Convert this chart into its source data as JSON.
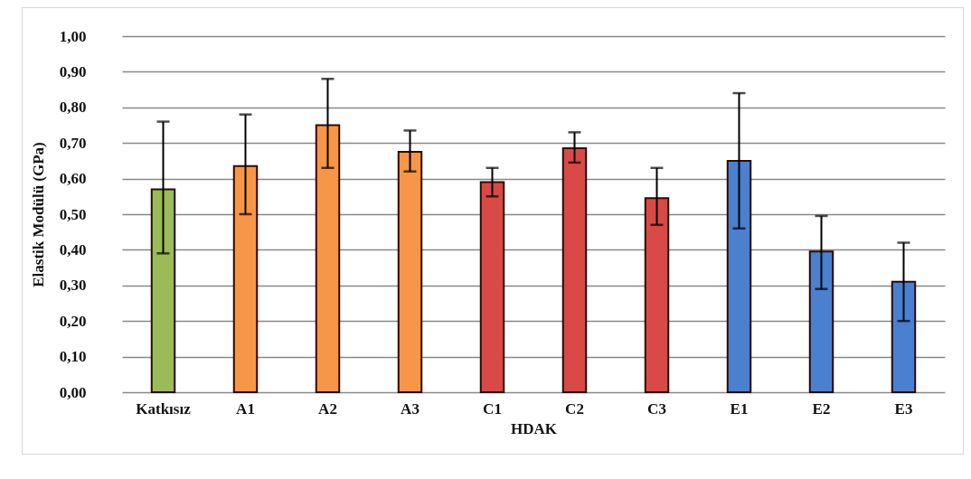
{
  "chart_data": {
    "type": "bar",
    "xlabel": "HDAK",
    "ylabel": "Elastik Modülü (GPa)",
    "categories": [
      "Katkısız",
      "A1",
      "A2",
      "A3",
      "C1",
      "C2",
      "C3",
      "E1",
      "E2",
      "E3"
    ],
    "values": [
      0.57,
      0.635,
      0.75,
      0.675,
      0.59,
      0.685,
      0.545,
      0.65,
      0.395,
      0.31
    ],
    "colors": [
      "#9bbb59",
      "#f79646",
      "#f79646",
      "#f79646",
      "#d94a46",
      "#d94a46",
      "#d94a46",
      "#4a80cf",
      "#4a80cf",
      "#4a80cf"
    ],
    "errors": [
      [
        0.39,
        0.76
      ],
      [
        0.5,
        0.78
      ],
      [
        0.63,
        0.88
      ],
      [
        0.62,
        0.735
      ],
      [
        0.55,
        0.63
      ],
      [
        0.645,
        0.73
      ],
      [
        0.47,
        0.63
      ],
      [
        0.46,
        0.84
      ],
      [
        0.29,
        0.495
      ],
      [
        0.2,
        0.42
      ]
    ],
    "ylim": [
      0,
      1
    ],
    "yticks": [
      {
        "value": 0,
        "label": "0,00"
      },
      {
        "value": 0.1,
        "label": "0,10"
      },
      {
        "value": 0.2,
        "label": "0,20"
      },
      {
        "value": 0.3,
        "label": "0,30"
      },
      {
        "value": 0.4,
        "label": "0,40"
      },
      {
        "value": 0.5,
        "label": "0,50"
      },
      {
        "value": 0.6,
        "label": "0,60"
      },
      {
        "value": 0.7,
        "label": "0,70"
      },
      {
        "value": 0.8,
        "label": "0,80"
      },
      {
        "value": 0.9,
        "label": "0,90"
      },
      {
        "value": 1,
        "label": "1,00"
      }
    ],
    "grid": "y",
    "legend": false
  }
}
